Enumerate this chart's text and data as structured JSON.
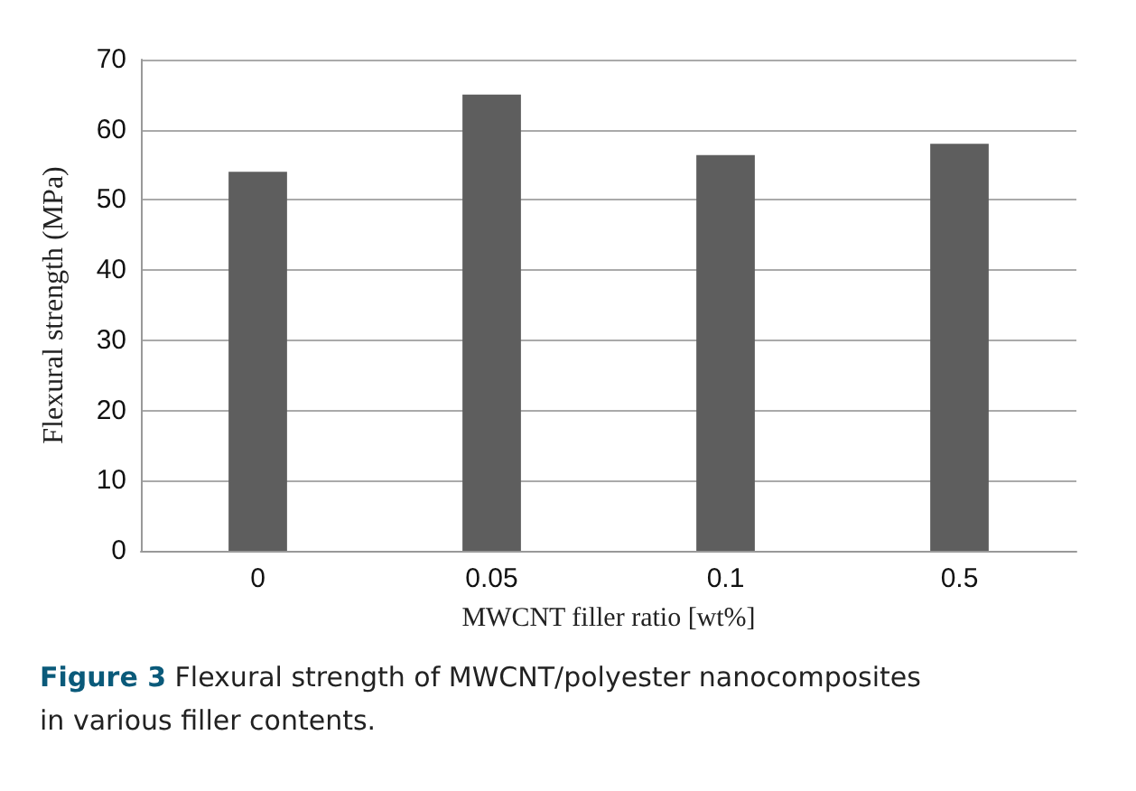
{
  "chart_data": {
    "type": "bar",
    "xlabel": "MWCNT filler ratio [wt%]",
    "ylabel": "Flexural strength (MPa)",
    "categories": [
      "0",
      "0.05",
      "0.1",
      "0.5"
    ],
    "values": [
      54,
      65,
      56.4,
      58
    ],
    "color": "#5e5e5e",
    "ylim": [
      0,
      70
    ],
    "yticks": [
      0,
      10,
      20,
      30,
      40,
      50,
      60,
      70
    ],
    "grid": "y",
    "legend": false,
    "annotations": [
      "Figure 3 Flexural strength of MWCNT/polyester nanocomposites in various filler contents."
    ]
  }
}
